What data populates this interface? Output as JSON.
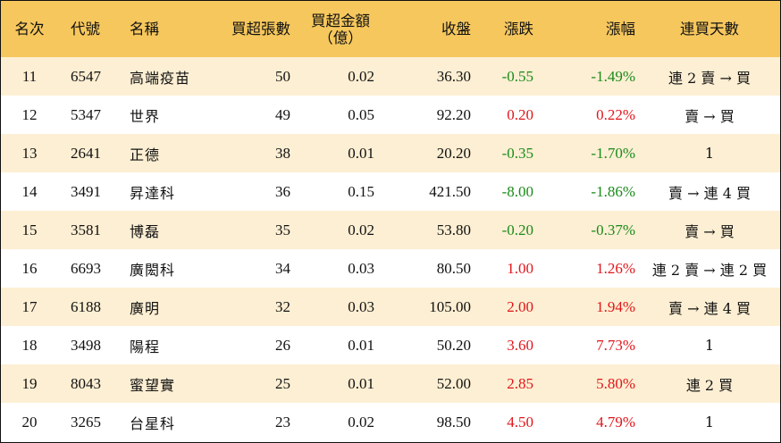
{
  "header": {
    "rank": "名次",
    "code": "代號",
    "name": "名稱",
    "net_buy_lots": "買超張數",
    "net_buy_amount_line1": "買超金額",
    "net_buy_amount_line2": "（億）",
    "close": "收盤",
    "change": "漲跌",
    "change_pct": "漲幅",
    "streak": "連買天數"
  },
  "colors": {
    "header_bg": "#f6c75d",
    "stripe_bg": "#fdefd3",
    "up": "#e0161b",
    "down": "#1a8a1a"
  },
  "rows": [
    {
      "rank": "11",
      "code": "6547",
      "name": "高端疫苗",
      "lots": "50",
      "amount": "0.02",
      "close": "36.30",
      "change": "-0.55",
      "change_pct": "-1.49%",
      "streak": "連 2 賣 → 買",
      "dir": "down"
    },
    {
      "rank": "12",
      "code": "5347",
      "name": "世界",
      "lots": "49",
      "amount": "0.05",
      "close": "92.20",
      "change": "0.20",
      "change_pct": "0.22%",
      "streak": "賣 → 買",
      "dir": "up"
    },
    {
      "rank": "13",
      "code": "2641",
      "name": "正德",
      "lots": "38",
      "amount": "0.01",
      "close": "20.20",
      "change": "-0.35",
      "change_pct": "-1.70%",
      "streak": "1",
      "dir": "down"
    },
    {
      "rank": "14",
      "code": "3491",
      "name": "昇達科",
      "lots": "36",
      "amount": "0.15",
      "close": "421.50",
      "change": "-8.00",
      "change_pct": "-1.86%",
      "streak": "賣 → 連 4 買",
      "dir": "down"
    },
    {
      "rank": "15",
      "code": "3581",
      "name": "博磊",
      "lots": "35",
      "amount": "0.02",
      "close": "53.80",
      "change": "-0.20",
      "change_pct": "-0.37%",
      "streak": "賣 → 買",
      "dir": "down"
    },
    {
      "rank": "16",
      "code": "6693",
      "name": "廣閎科",
      "lots": "34",
      "amount": "0.03",
      "close": "80.50",
      "change": "1.00",
      "change_pct": "1.26%",
      "streak": "連 2 賣 → 連 2 買",
      "dir": "up"
    },
    {
      "rank": "17",
      "code": "6188",
      "name": "廣明",
      "lots": "32",
      "amount": "0.03",
      "close": "105.00",
      "change": "2.00",
      "change_pct": "1.94%",
      "streak": "賣 → 連 4 買",
      "dir": "up"
    },
    {
      "rank": "18",
      "code": "3498",
      "name": "陽程",
      "lots": "26",
      "amount": "0.01",
      "close": "50.20",
      "change": "3.60",
      "change_pct": "7.73%",
      "streak": "1",
      "dir": "up"
    },
    {
      "rank": "19",
      "code": "8043",
      "name": "蜜望實",
      "lots": "25",
      "amount": "0.01",
      "close": "52.00",
      "change": "2.85",
      "change_pct": "5.80%",
      "streak": "連 2 買",
      "dir": "up"
    },
    {
      "rank": "20",
      "code": "3265",
      "name": "台星科",
      "lots": "23",
      "amount": "0.02",
      "close": "98.50",
      "change": "4.50",
      "change_pct": "4.79%",
      "streak": "1",
      "dir": "up"
    }
  ]
}
